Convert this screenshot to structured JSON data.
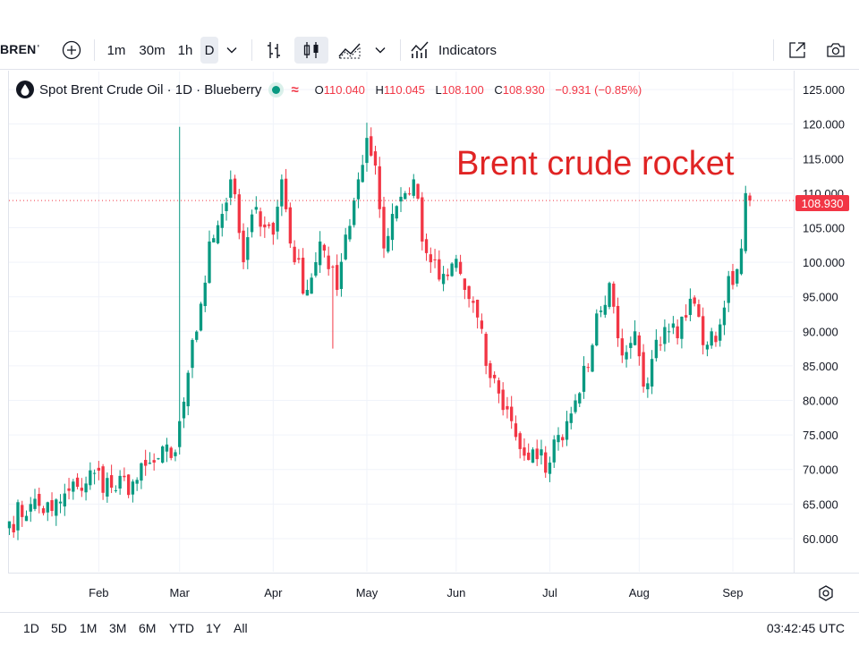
{
  "toolbar": {
    "symbol": "BRENˈ",
    "intervals": [
      "1m",
      "30m",
      "1h",
      "D"
    ],
    "active_interval": "D",
    "indicators_label": "Indicators"
  },
  "legend": {
    "title": "Spot Brent Crude Oil · 1D · Blueberry",
    "o_label": "O",
    "o_value": "110.040",
    "h_label": "H",
    "h_value": "110.045",
    "l_label": "L",
    "l_value": "108.100",
    "c_label": "C",
    "c_value": "108.930",
    "change": "−0.931 (−0.85%)"
  },
  "annotation": "Brent crude rocket",
  "last_price_label": "108.930",
  "bottom_bar": {
    "ranges": [
      "1D",
      "5D",
      "1M",
      "3M",
      "6M",
      "YTD",
      "1Y",
      "All"
    ],
    "clock": "03:42:45 UTC"
  },
  "colors": {
    "up": "#089981",
    "down": "#f23645",
    "annotation": "#e02424",
    "grid": "#f0f3fa"
  },
  "chart_data": {
    "type": "candlestick",
    "interval": "1D",
    "y_ticks": [
      "125.000",
      "120.000",
      "115.000",
      "110.000",
      "105.000",
      "100.000",
      "95.000",
      "90.000",
      "85.000",
      "80.000",
      "75.000",
      "70.000",
      "65.000",
      "60.000"
    ],
    "y_tick_values": [
      125,
      120,
      115,
      110,
      105,
      100,
      95,
      90,
      85,
      80,
      75,
      70,
      65,
      60
    ],
    "x_ticks": [
      "Feb",
      "Mar",
      "Apr",
      "May",
      "Jun",
      "Jul",
      "Aug",
      "Sep"
    ],
    "y_range": [
      55.2,
      127.6
    ],
    "x_range_trading_days": [
      -0.1,
      174
    ],
    "x_tick_days": [
      21,
      40,
      62,
      84,
      105,
      127,
      148,
      170
    ],
    "last_price": 108.93,
    "waypoints_close": [
      [
        0,
        62.5
      ],
      [
        5,
        65.0
      ],
      [
        10,
        64.0
      ],
      [
        16,
        67.5
      ],
      [
        20,
        69.5
      ],
      [
        25,
        67.0
      ],
      [
        30,
        68.5
      ],
      [
        34,
        71.0
      ],
      [
        39,
        72.5
      ],
      [
        40,
        77.0
      ],
      [
        42,
        84.0
      ],
      [
        45,
        94.0
      ],
      [
        47,
        103.0
      ],
      [
        50,
        107.0
      ],
      [
        52,
        112.0
      ],
      [
        55,
        100.0
      ],
      [
        58,
        108.0
      ],
      [
        62,
        104.0
      ],
      [
        64,
        112.0
      ],
      [
        67,
        100.0
      ],
      [
        70,
        96.0
      ],
      [
        73,
        103.0
      ],
      [
        75,
        99.0
      ],
      [
        77,
        96.0
      ],
      [
        79,
        104.0
      ],
      [
        82,
        112.0
      ],
      [
        84,
        118.0
      ],
      [
        86,
        114.0
      ],
      [
        88,
        102.0
      ],
      [
        90,
        107.0
      ],
      [
        93,
        110.0
      ],
      [
        95,
        112.0
      ],
      [
        97,
        103.0
      ],
      [
        99,
        100.0
      ],
      [
        101,
        97.5
      ],
      [
        103,
        98.0
      ],
      [
        105,
        100.5
      ],
      [
        107,
        96.0
      ],
      [
        110,
        92.0
      ],
      [
        112,
        85.0
      ],
      [
        115,
        81.0
      ],
      [
        118,
        77.0
      ],
      [
        121,
        72.0
      ],
      [
        124,
        71.5
      ],
      [
        127,
        71.0
      ],
      [
        129,
        75.0
      ],
      [
        131,
        77.0
      ],
      [
        133,
        80.0
      ],
      [
        135,
        85.0
      ],
      [
        137,
        88.0
      ],
      [
        139,
        93.0
      ],
      [
        141,
        97.0
      ],
      [
        143,
        89.0
      ],
      [
        145,
        87.0
      ],
      [
        147,
        90.0
      ],
      [
        149,
        82.0
      ],
      [
        151,
        86.0
      ],
      [
        153,
        88.0
      ],
      [
        155,
        90.0
      ],
      [
        157,
        89.0
      ],
      [
        159,
        92.0
      ],
      [
        161,
        94.0
      ],
      [
        163,
        88.0
      ],
      [
        165,
        90.0
      ],
      [
        167,
        91.0
      ],
      [
        169,
        98.0
      ],
      [
        171,
        99.0
      ],
      [
        172,
        102.0
      ],
      [
        173,
        110.0
      ],
      [
        174,
        108.93
      ]
    ]
  }
}
